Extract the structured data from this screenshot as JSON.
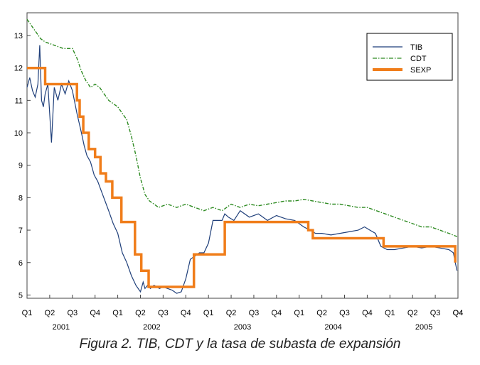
{
  "caption": "Figura 2. TIB, CDT y la tasa de subasta de expansión",
  "chart_data": {
    "type": "line",
    "title": "",
    "xlabel": "",
    "ylabel": "",
    "ylim": [
      4.9,
      13.7
    ],
    "xlim": [
      2001.0,
      2005.75
    ],
    "yticks": [
      5,
      6,
      7,
      8,
      9,
      10,
      11,
      12,
      13
    ],
    "quarter_ticks": [
      "Q1",
      "Q2",
      "Q3",
      "Q4",
      "Q1",
      "Q2",
      "Q3",
      "Q4",
      "Q1",
      "Q2",
      "Q3",
      "Q4",
      "Q1",
      "Q2",
      "Q3",
      "Q4",
      "Q1",
      "Q2",
      "Q3",
      "Q4"
    ],
    "years": [
      {
        "label": "2001",
        "x": 2001.375
      },
      {
        "label": "2002",
        "x": 2002.375
      },
      {
        "label": "2003",
        "x": 2003.375
      },
      {
        "label": "2004",
        "x": 2004.375
      },
      {
        "label": "2005",
        "x": 2005.375
      }
    ],
    "legend_position": "top-right",
    "series": [
      {
        "name": "TIB",
        "color": "#1f3f7a",
        "style": "solid",
        "x": [
          2001.0,
          2001.03,
          2001.06,
          2001.09,
          2001.12,
          2001.14,
          2001.16,
          2001.18,
          2001.2,
          2001.23,
          2001.27,
          2001.3,
          2001.34,
          2001.38,
          2001.42,
          2001.46,
          2001.5,
          2001.55,
          2001.6,
          2001.63,
          2001.66,
          2001.7,
          2001.74,
          2001.78,
          2001.82,
          2001.86,
          2001.9,
          2001.95,
          2002.0,
          2002.05,
          2002.1,
          2002.15,
          2002.2,
          2002.25,
          2002.28,
          2002.3,
          2002.33,
          2002.36,
          2002.4,
          2002.43,
          2002.46,
          2002.5,
          2002.55,
          2002.6,
          2002.65,
          2002.7,
          2002.75,
          2002.8,
          2002.85,
          2002.9,
          2002.95,
          2003.0,
          2003.05,
          2003.1,
          2003.15,
          2003.18,
          2003.22,
          2003.28,
          2003.35,
          2003.45,
          2003.55,
          2003.65,
          2003.75,
          2003.85,
          2003.95,
          2004.05,
          2004.12,
          2004.18,
          2004.25,
          2004.35,
          2004.45,
          2004.55,
          2004.65,
          2004.72,
          2004.78,
          2004.84,
          2004.9,
          2004.97,
          2005.05,
          2005.15,
          2005.25,
          2005.35,
          2005.45,
          2005.55,
          2005.65,
          2005.7,
          2005.72,
          2005.74
        ],
        "values": [
          11.4,
          11.7,
          11.3,
          11.1,
          11.5,
          12.7,
          11.0,
          10.8,
          11.2,
          11.5,
          9.7,
          11.4,
          11.0,
          11.5,
          11.2,
          11.6,
          11.3,
          10.6,
          10.0,
          9.6,
          9.3,
          9.1,
          8.7,
          8.5,
          8.2,
          7.9,
          7.6,
          7.2,
          6.9,
          6.3,
          6.0,
          5.6,
          5.3,
          5.1,
          5.4,
          5.2,
          5.3,
          5.2,
          5.3,
          5.25,
          5.2,
          5.25,
          5.2,
          5.15,
          5.05,
          5.1,
          5.5,
          6.1,
          6.2,
          6.3,
          6.3,
          6.6,
          7.3,
          7.3,
          7.3,
          7.5,
          7.4,
          7.3,
          7.6,
          7.4,
          7.5,
          7.3,
          7.45,
          7.35,
          7.3,
          7.1,
          7.0,
          6.9,
          6.9,
          6.85,
          6.9,
          6.95,
          7.0,
          7.1,
          7.0,
          6.9,
          6.5,
          6.4,
          6.4,
          6.45,
          6.5,
          6.45,
          6.5,
          6.45,
          6.4,
          6.3,
          6.0,
          5.75
        ]
      },
      {
        "name": "CDT",
        "color": "#2e8b22",
        "style": "dashdot",
        "x": [
          2001.0,
          2001.05,
          2001.1,
          2001.15,
          2001.2,
          2001.3,
          2001.4,
          2001.5,
          2001.55,
          2001.6,
          2001.65,
          2001.7,
          2001.75,
          2001.8,
          2001.85,
          2001.9,
          2001.95,
          2002.0,
          2002.05,
          2002.1,
          2002.15,
          2002.2,
          2002.25,
          2002.3,
          2002.35,
          2002.4,
          2002.45,
          2002.55,
          2002.65,
          2002.75,
          2002.85,
          2002.95,
          2003.05,
          2003.15,
          2003.25,
          2003.35,
          2003.45,
          2003.55,
          2003.65,
          2003.75,
          2003.85,
          2003.95,
          2004.05,
          2004.15,
          2004.25,
          2004.35,
          2004.45,
          2004.55,
          2004.65,
          2004.75,
          2004.85,
          2004.95,
          2005.05,
          2005.15,
          2005.25,
          2005.35,
          2005.45,
          2005.55,
          2005.65,
          2005.74
        ],
        "values": [
          13.5,
          13.3,
          13.1,
          12.9,
          12.8,
          12.7,
          12.6,
          12.6,
          12.3,
          11.9,
          11.6,
          11.4,
          11.5,
          11.4,
          11.2,
          11.0,
          10.9,
          10.8,
          10.6,
          10.4,
          9.9,
          9.3,
          8.6,
          8.1,
          7.9,
          7.8,
          7.7,
          7.8,
          7.7,
          7.8,
          7.7,
          7.6,
          7.7,
          7.6,
          7.8,
          7.7,
          7.8,
          7.75,
          7.8,
          7.85,
          7.9,
          7.9,
          7.95,
          7.9,
          7.85,
          7.8,
          7.8,
          7.75,
          7.7,
          7.7,
          7.6,
          7.5,
          7.4,
          7.3,
          7.2,
          7.1,
          7.1,
          7.0,
          6.9,
          6.8
        ]
      },
      {
        "name": "SEXP",
        "color": "#f07d1a",
        "style": "step",
        "x": [
          2001.0,
          2001.2,
          2001.2,
          2001.55,
          2001.55,
          2001.58,
          2001.58,
          2001.62,
          2001.62,
          2001.68,
          2001.68,
          2001.75,
          2001.75,
          2001.81,
          2001.81,
          2001.87,
          2001.87,
          2001.94,
          2001.94,
          2002.04,
          2002.04,
          2002.19,
          2002.19,
          2002.26,
          2002.26,
          2002.34,
          2002.34,
          2002.42,
          2002.42,
          2002.84,
          2002.84,
          2003.12,
          2003.12,
          2003.18,
          2003.18,
          2003.27,
          2003.27,
          2004.1,
          2004.1,
          2004.15,
          2004.15,
          2004.22,
          2004.22,
          2004.93,
          2004.93,
          2004.97,
          2004.97,
          2005.72,
          2005.72
        ],
        "values": [
          12.0,
          12.0,
          11.5,
          11.5,
          11.0,
          11.0,
          10.5,
          10.5,
          10.0,
          10.0,
          9.5,
          9.5,
          9.25,
          9.25,
          8.75,
          8.75,
          8.5,
          8.5,
          8.0,
          8.0,
          7.25,
          7.25,
          6.25,
          6.25,
          5.75,
          5.75,
          5.25,
          5.25,
          5.25,
          5.25,
          6.25,
          6.25,
          6.25,
          6.25,
          7.25,
          7.25,
          7.25,
          7.25,
          7.0,
          7.0,
          6.75,
          6.75,
          6.75,
          6.75,
          6.5,
          6.5,
          6.5,
          6.5,
          6.0
        ]
      }
    ]
  }
}
